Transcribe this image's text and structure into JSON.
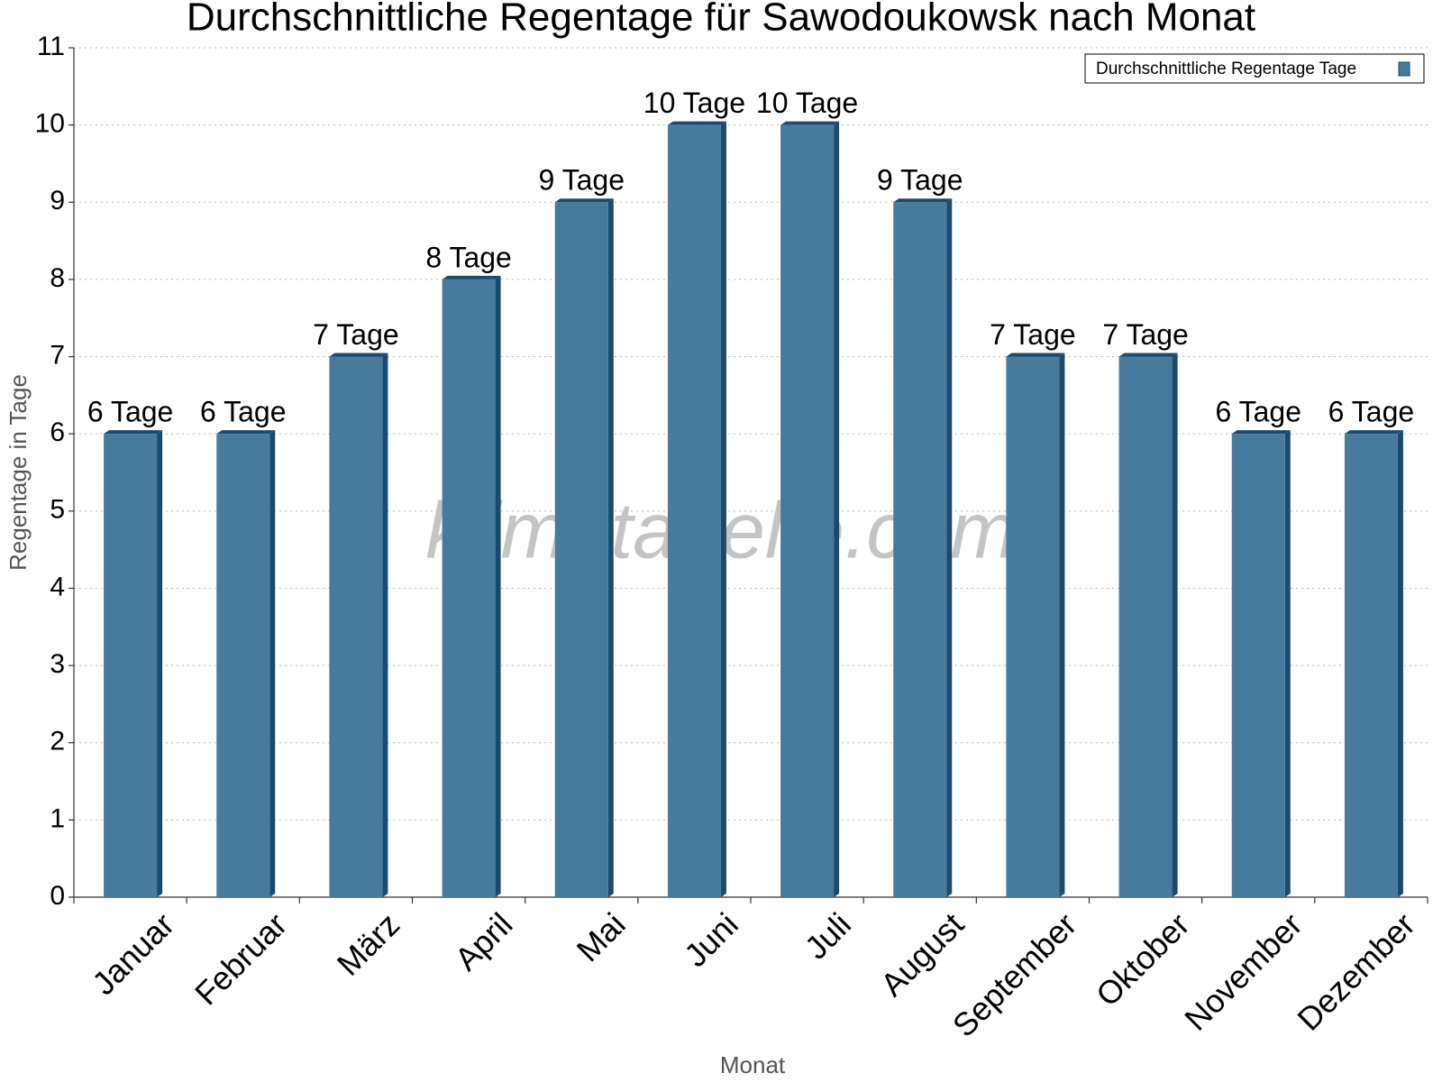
{
  "chart_data": {
    "type": "bar",
    "title": "Durchschnittliche Regentage für Sawodoukowsk nach Monat",
    "x_label": "Monat",
    "y_label": "Regentage in Tage",
    "watermark": "klimatabelle.com",
    "categories": [
      "Januar",
      "Februar",
      "März",
      "April",
      "Mai",
      "Juni",
      "Juli",
      "August",
      "September",
      "Oktober",
      "November",
      "Dezember"
    ],
    "series": [
      {
        "name": "Durchschnittliche Regentage Tage",
        "color": "#467a9e",
        "values": [
          6,
          6,
          7,
          8,
          9,
          10,
          10,
          9,
          7,
          7,
          6,
          6
        ],
        "value_labels": [
          "6 Tage",
          "6 Tage",
          "7 Tage",
          "8 Tage",
          "9 Tage",
          "10 Tage",
          "10 Tage",
          "9 Tage",
          "7 Tage",
          "7 Tage",
          "6 Tage",
          "6 Tage"
        ]
      }
    ],
    "ylim": [
      0,
      11
    ],
    "yticks": [
      0,
      1,
      2,
      3,
      4,
      5,
      6,
      7,
      8,
      9,
      10,
      11
    ],
    "grid": true,
    "legend": "top-right"
  }
}
